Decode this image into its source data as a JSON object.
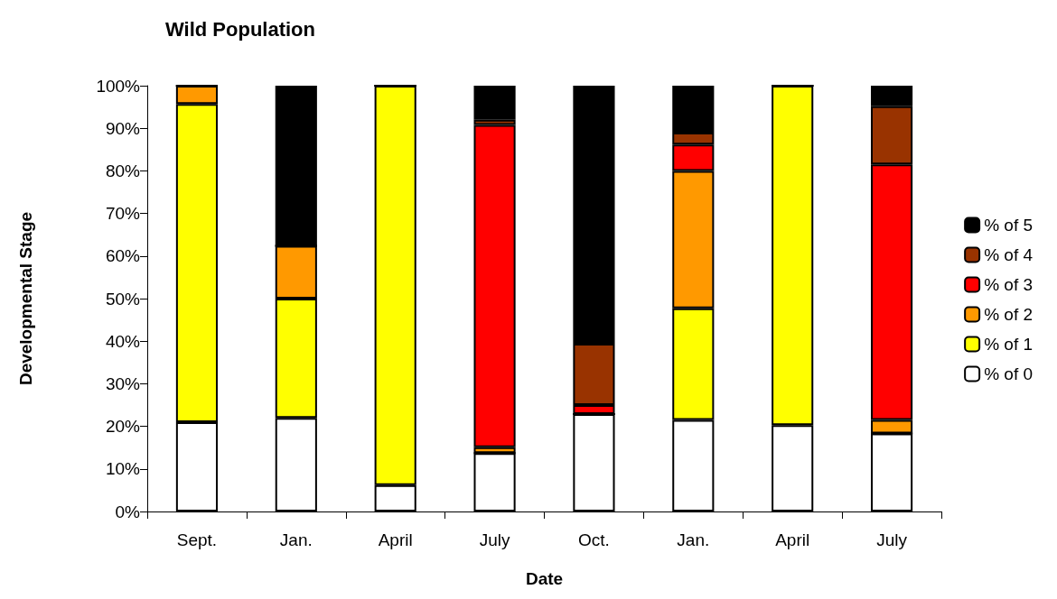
{
  "chart_data": {
    "type": "bar",
    "title": "Wild Population",
    "xlabel": "Date",
    "ylabel": "Developmental Stage",
    "categories": [
      "Sept.",
      "Jan.",
      "April",
      "July",
      "Oct.",
      "Jan.",
      "April",
      "July"
    ],
    "stacked": true,
    "legend": "right",
    "grid": false,
    "ylim": [
      0,
      100
    ],
    "yticks": [
      {
        "value": 0,
        "label": "0%"
      },
      {
        "value": 10,
        "label": "10%"
      },
      {
        "value": 20,
        "label": "20%"
      },
      {
        "value": 30,
        "label": "30%"
      },
      {
        "value": 40,
        "label": "40%"
      },
      {
        "value": 50,
        "label": "50%"
      },
      {
        "value": 60,
        "label": "60%"
      },
      {
        "value": 70,
        "label": "70%"
      },
      {
        "value": 80,
        "label": "80%"
      },
      {
        "value": 90,
        "label": "90%"
      },
      {
        "value": 100,
        "label": "100%"
      }
    ],
    "series": [
      {
        "name": "% of 0",
        "color": "#ffffff",
        "values": [
          21,
          22,
          6.2,
          13.7,
          22.9,
          21.5,
          20.3,
          18.3
        ]
      },
      {
        "name": "% of 1",
        "color": "#ffff00",
        "values": [
          74.7,
          28,
          93.8,
          0,
          0,
          26.2,
          79.7,
          0
        ]
      },
      {
        "name": "% of 2",
        "color": "#ff9900",
        "values": [
          4.3,
          12.4,
          0,
          1.4,
          0,
          32.3,
          0,
          3.2
        ]
      },
      {
        "name": "% of 3",
        "color": "#ff0000",
        "values": [
          0,
          0,
          0,
          75.7,
          2.1,
          6.2,
          0,
          60
        ]
      },
      {
        "name": "% of 4",
        "color": "#993300",
        "values": [
          0,
          0,
          0,
          1.2,
          14.4,
          2.8,
          0,
          13.7
        ]
      },
      {
        "name": "% of 5",
        "color": "#000000",
        "values": [
          0,
          37.6,
          0,
          8,
          60.6,
          11,
          0,
          4.8
        ]
      }
    ]
  }
}
